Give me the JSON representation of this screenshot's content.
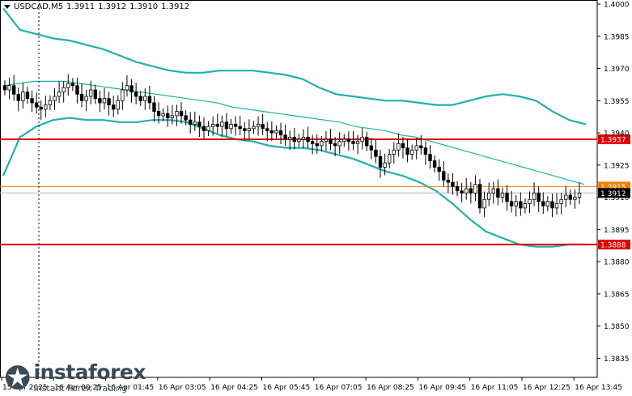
{
  "header": {
    "symbol": "USDCAD,M5",
    "open": "1.3911",
    "high": "1.3912",
    "low": "1.3910",
    "close": "1.3912"
  },
  "logo": {
    "brand": "instaforex",
    "tagline": "Instant Forex Trading"
  },
  "colors": {
    "candle": "#000000",
    "band": "#20b2aa",
    "ma": "#20b2aa",
    "support_resistance": "#e00000",
    "price_line": "#f08000",
    "grid": "#e4e4e4"
  },
  "chart_data": {
    "type": "candlestick",
    "symbol": "USDCAD",
    "timeframe": "M5",
    "ylim": [
      1.3828,
      1.4
    ],
    "y_ticks": [
      "1.4000",
      "1.3985",
      "1.3970",
      "1.3955",
      "1.3940",
      "1.3925",
      "1.3910",
      "1.3895",
      "1.3880",
      "1.3865",
      "1.3850",
      "1.3835"
    ],
    "x_ticks": [
      "15 Apr 2025",
      "16 Apr 00:25",
      "16 Apr 01:45",
      "16 Apr 03:05",
      "16 Apr 04:25",
      "16 Apr 05:45",
      "16 Apr 07:05",
      "16 Apr 08:25",
      "16 Apr 09:45",
      "16 Apr 11:05",
      "16 Apr 12:25",
      "16 Apr 13:45"
    ],
    "price_levels": [
      {
        "value": 1.3937,
        "label": "1.3937",
        "kind": "resistance"
      },
      {
        "value": 1.3915,
        "label": "1.3915",
        "kind": "level"
      },
      {
        "value": 1.3888,
        "label": "1.3888",
        "kind": "support"
      }
    ],
    "current_price": {
      "value": 1.3912,
      "label": "1.3912"
    },
    "candle_closes": [
      1.396,
      1.3962,
      1.3958,
      1.3955,
      1.3959,
      1.3956,
      1.3954,
      1.3952,
      1.3951,
      1.3953,
      1.3955,
      1.3957,
      1.3959,
      1.3961,
      1.3963,
      1.3962,
      1.3958,
      1.3955,
      1.3957,
      1.396,
      1.3956,
      1.3954,
      1.3956,
      1.3953,
      1.3951,
      1.3955,
      1.396,
      1.3962,
      1.3959,
      1.3957,
      1.3955,
      1.3957,
      1.3954,
      1.395,
      1.3948,
      1.3949,
      1.3947,
      1.3948,
      1.395,
      1.3948,
      1.3946,
      1.3944,
      1.3945,
      1.3943,
      1.3941,
      1.3943,
      1.3944,
      1.3943,
      1.3945,
      1.3942,
      1.3944,
      1.3943,
      1.3942,
      1.3941,
      1.3942,
      1.3943,
      1.3944,
      1.3942,
      1.3941,
      1.394,
      1.3941,
      1.3939,
      1.3937,
      1.3938,
      1.3936,
      1.3937,
      1.3938,
      1.3936,
      1.3935,
      1.3934,
      1.3936,
      1.3937,
      1.3935,
      1.3934,
      1.3936,
      1.3937,
      1.3936,
      1.3935,
      1.3936,
      1.3938,
      1.3934,
      1.3932,
      1.3929,
      1.3924,
      1.3926,
      1.393,
      1.3932,
      1.3935,
      1.3933,
      1.393,
      1.3932,
      1.3934,
      1.3933,
      1.393,
      1.3927,
      1.3924,
      1.3922,
      1.3918,
      1.3917,
      1.3915,
      1.3913,
      1.3912,
      1.3914,
      1.3912,
      1.3916,
      1.3905,
      1.3909,
      1.3912,
      1.3914,
      1.391,
      1.3912,
      1.3908,
      1.3906,
      1.3908,
      1.3905,
      1.3907,
      1.3909,
      1.3912,
      1.3908,
      1.3906,
      1.3908,
      1.3905,
      1.3907,
      1.3909,
      1.3911,
      1.3909,
      1.391,
      1.3912
    ],
    "ma_slow": [
      1.3962,
      1.3963,
      1.3964,
      1.3964,
      1.3964,
      1.3963,
      1.3962,
      1.3961,
      1.396,
      1.3959,
      1.3958,
      1.3957,
      1.3956,
      1.3955,
      1.3954,
      1.3952,
      1.3951,
      1.395,
      1.3949,
      1.3948,
      1.3947,
      1.3946,
      1.3945,
      1.3943,
      1.3942,
      1.3941,
      1.3939,
      1.3938,
      1.3936,
      1.3934,
      1.3932,
      1.393,
      1.3928,
      1.3926,
      1.3924,
      1.3922,
      1.392,
      1.3918,
      1.3916
    ],
    "band_upper": [
      1.3998,
      1.3988,
      1.3986,
      1.3984,
      1.3983,
      1.3981,
      1.3979,
      1.3976,
      1.3973,
      1.3971,
      1.3969,
      1.3968,
      1.3968,
      1.3969,
      1.3969,
      1.3969,
      1.3968,
      1.3967,
      1.3965,
      1.3961,
      1.3958,
      1.3957,
      1.3956,
      1.3955,
      1.3955,
      1.3954,
      1.3953,
      1.3953,
      1.3955,
      1.3957,
      1.3958,
      1.3957,
      1.3955,
      1.395,
      1.3946,
      1.3944
    ],
    "band_lower": [
      1.392,
      1.3938,
      1.3943,
      1.3946,
      1.3947,
      1.3946,
      1.3946,
      1.3945,
      1.3945,
      1.3946,
      1.3946,
      1.3945,
      1.3942,
      1.3939,
      1.3937,
      1.3936,
      1.3934,
      1.3933,
      1.3933,
      1.3932,
      1.393,
      1.3928,
      1.3925,
      1.3922,
      1.392,
      1.3917,
      1.3913,
      1.3907,
      1.39,
      1.3894,
      1.3891,
      1.3888,
      1.3887,
      1.3887,
      1.3888,
      1.3888
    ]
  }
}
